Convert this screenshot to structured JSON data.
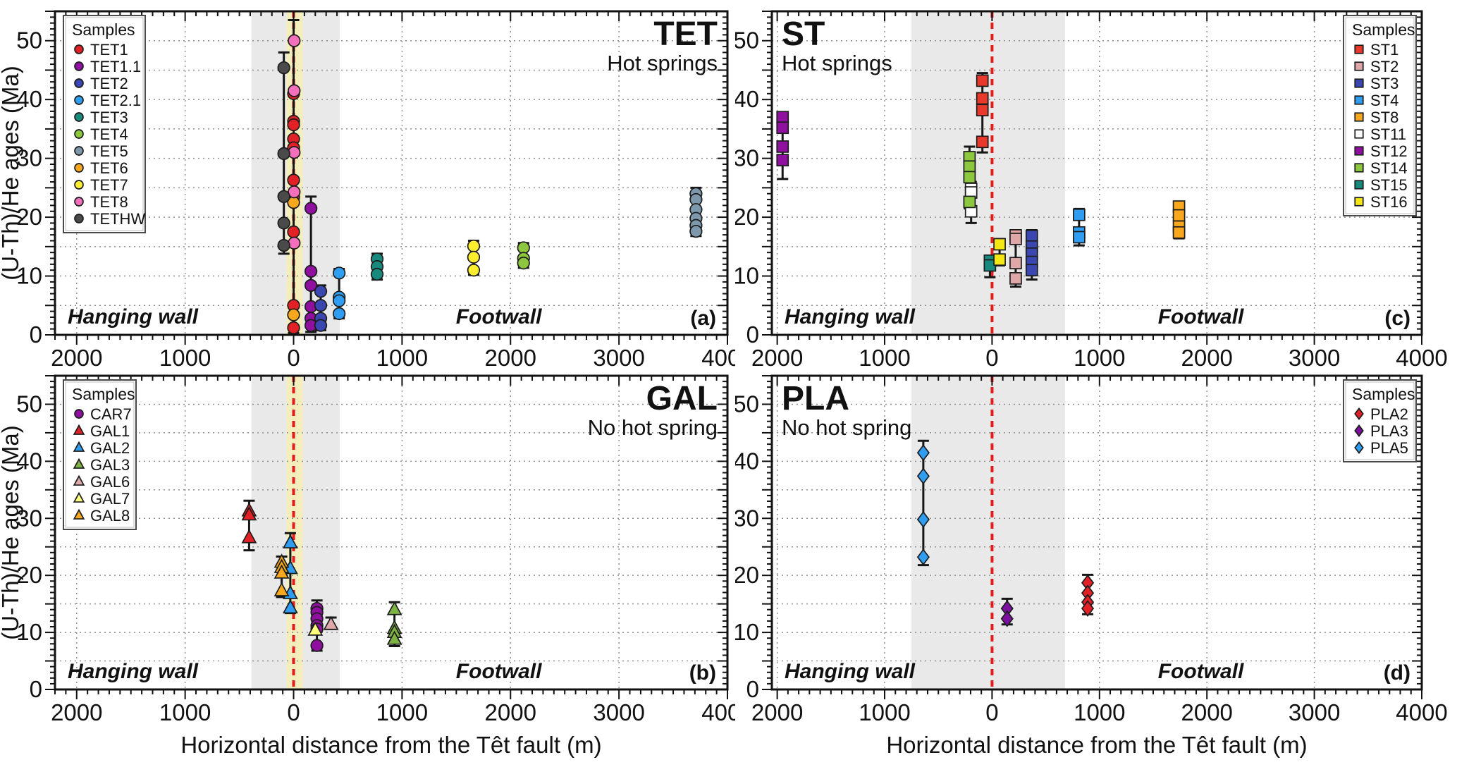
{
  "figure": {
    "xlabel": "Horizontal distance from the Têt fault (m)",
    "ylabel": "(U-Th)/He ages (Ma)",
    "colors": {
      "fault_line": "#e51c1c",
      "grey_band": "#e9e9e9",
      "yellow_band": "#f3eebc",
      "grid": "#909090",
      "frame": "#111111"
    }
  },
  "chart_data": [
    {
      "id": "a",
      "type": "scatter",
      "title": "TET",
      "subtitle": "Hot springs",
      "title_side": "right",
      "corner_label": "(a)",
      "left_label": "Hanging wall",
      "right_label": "Footwall",
      "x_range": [
        -2200,
        4000
      ],
      "y_range": [
        0,
        55
      ],
      "x_tick_step": 1000,
      "x_minor_step": 100,
      "y_grid_step": 5,
      "y_minor_step": 1,
      "y_label_step": 10,
      "bands": {
        "grey": [
          -390,
          425
        ],
        "yellow": [
          -65,
          85
        ]
      },
      "fault_x": 0,
      "legend": {
        "title": "Samples",
        "position": "top-left"
      },
      "series": [
        {
          "name": "TET1",
          "marker": "circle",
          "color": "#e22127",
          "x": 0,
          "ages": [
            41.0,
            36.3,
            35.7,
            33.3,
            31.8,
            26.3,
            23.4,
            17.5,
            5.0,
            1.2
          ],
          "bar": [
            0.3,
            53.5
          ]
        },
        {
          "name": "TET1.1",
          "marker": "circle",
          "color": "#8f109f",
          "x": 160,
          "ages": [
            21.5,
            10.8,
            8.4,
            4.8,
            2.8,
            1.6
          ],
          "bar": [
            0.5,
            23.5
          ]
        },
        {
          "name": "TET2",
          "marker": "circle",
          "color": "#3a47b0",
          "x": 250,
          "ages": [
            7.4,
            5.0,
            2.8,
            1.6
          ],
          "bar": [
            0.8,
            8.4
          ]
        },
        {
          "name": "TET2.1",
          "marker": "circle",
          "color": "#2e9df2",
          "x": 420,
          "ages": [
            10.5,
            6.4,
            5.8,
            3.6
          ],
          "bar": [
            2.8,
            11.2
          ]
        },
        {
          "name": "TET3",
          "marker": "circle",
          "color": "#188a7d",
          "x": 770,
          "ages": [
            12.9,
            11.6,
            10.3
          ],
          "bar": [
            9.4,
            13.8
          ]
        },
        {
          "name": "TET4",
          "marker": "circle",
          "color": "#8dc63f",
          "x": 2120,
          "ages": [
            14.8,
            13.0,
            12.2
          ],
          "bar": [
            11.4,
            15.6
          ]
        },
        {
          "name": "TET5",
          "marker": "circle",
          "color": "#7d97ab",
          "x": 3710,
          "ages": [
            24.0,
            23.0,
            21.3,
            19.8,
            18.6,
            17.6
          ],
          "bar": [
            16.8,
            25.0
          ]
        },
        {
          "name": "TET6",
          "marker": "circle",
          "color": "#f7a81d",
          "x": 0,
          "ages": [
            22.5,
            3.4
          ],
          "bar": null
        },
        {
          "name": "TET7",
          "marker": "circle",
          "color": "#fdee30",
          "x": 1660,
          "ages": [
            15.1,
            13.2,
            11.0
          ],
          "bar": [
            10.2,
            16.0
          ]
        },
        {
          "name": "TET8",
          "marker": "circle",
          "color": "#f570bc",
          "x": 5,
          "ages": [
            50.0,
            41.5,
            31.0,
            24.3,
            15.6
          ],
          "bar": null
        },
        {
          "name": "TETHW",
          "marker": "circle",
          "color": "#4a4a4a",
          "x": -90,
          "ages": [
            45.4,
            30.8,
            23.5,
            19.0,
            15.2
          ],
          "bar": [
            13.8,
            48.0
          ]
        }
      ]
    },
    {
      "id": "b",
      "type": "scatter",
      "title": "GAL",
      "subtitle": "No hot spring",
      "title_side": "right",
      "corner_label": "(b)",
      "left_label": "Hanging wall",
      "right_label": "Footwall",
      "x_range": [
        -2200,
        4000
      ],
      "y_range": [
        0,
        55
      ],
      "x_tick_step": 1000,
      "x_minor_step": 100,
      "y_grid_step": 5,
      "y_minor_step": 1,
      "y_label_step": 10,
      "bands": {
        "grey": [
          -390,
          425
        ],
        "yellow": [
          -65,
          85
        ]
      },
      "fault_x": 0,
      "legend": {
        "title": "Samples",
        "position": "top-left"
      },
      "series": [
        {
          "name": "CAR7",
          "marker": "circle",
          "color": "#8f109f",
          "x": 215,
          "ages": [
            14.2,
            13.5,
            12.4,
            11.2,
            10.6,
            7.7
          ],
          "bar": [
            6.8,
            15.6
          ]
        },
        {
          "name": "GAL1",
          "marker": "triangle",
          "color": "#e22127",
          "x": -410,
          "ages": [
            31.3,
            30.6,
            26.6
          ],
          "bar": [
            24.4,
            33.1
          ]
        },
        {
          "name": "GAL2",
          "marker": "triangle",
          "color": "#2e9df2",
          "x": -30,
          "ages": [
            25.7,
            21.2,
            16.8,
            14.3
          ],
          "bar": [
            13.4,
            27.4
          ]
        },
        {
          "name": "GAL3",
          "marker": "triangle",
          "color": "#7db343",
          "x": 930,
          "ages": [
            14.0,
            10.7,
            10.0,
            8.8
          ],
          "bar": [
            7.6,
            15.3
          ]
        },
        {
          "name": "GAL6",
          "marker": "triangle",
          "color": "#dfa8a8",
          "x": 345,
          "ages": [
            11.4
          ],
          "bar": [
            10.6,
            12.6
          ]
        },
        {
          "name": "GAL7",
          "marker": "triangle",
          "color": "#ffff7e",
          "x": 200,
          "ages": [
            10.4
          ],
          "bar": null
        },
        {
          "name": "GAL8",
          "marker": "triangle",
          "color": "#f7a81d",
          "x": -110,
          "ages": [
            22.3,
            21.4,
            20.4,
            17.3
          ],
          "bar": [
            16.2,
            23.3
          ]
        }
      ]
    },
    {
      "id": "c",
      "type": "scatter",
      "title": "ST",
      "subtitle": "Hot springs",
      "title_side": "left",
      "corner_label": "(c)",
      "left_label": "Hanging wall",
      "right_label": "Footwall",
      "x_range": [
        -2050,
        4000
      ],
      "y_range": [
        0,
        55
      ],
      "x_tick_step": 1000,
      "x_minor_step": 100,
      "y_grid_step": 5,
      "y_minor_step": 1,
      "y_label_step": 10,
      "bands": {
        "grey": [
          -750,
          680
        ],
        "yellow": null
      },
      "fault_x": 0,
      "legend": {
        "title": "Samples",
        "position": "top-right"
      },
      "series": [
        {
          "name": "ST1",
          "marker": "square",
          "color": "#e8392c",
          "x": -90,
          "ages": [
            43.2,
            40.2,
            38.2,
            32.8
          ],
          "bar": [
            31.0,
            44.5
          ]
        },
        {
          "name": "ST2",
          "marker": "square",
          "color": "#dfa8a8",
          "x": 220,
          "ages": [
            16.9,
            16.3,
            12.2,
            9.6
          ],
          "bar": [
            8.2,
            17.8
          ]
        },
        {
          "name": "ST3",
          "marker": "square",
          "color": "#3a47b0",
          "x": 370,
          "ages": [
            16.8,
            15.0,
            13.8,
            12.4,
            11.0
          ],
          "bar": [
            9.4,
            17.8
          ]
        },
        {
          "name": "ST4",
          "marker": "square",
          "color": "#2e9df2",
          "x": 810,
          "ages": [
            20.4,
            17.4,
            16.6
          ],
          "bar": [
            15.2,
            21.4
          ]
        },
        {
          "name": "ST8",
          "marker": "square",
          "color": "#f7a81d",
          "x": 1740,
          "ages": [
            21.8,
            20.3,
            18.4,
            17.4
          ],
          "bar": [
            16.4,
            22.6
          ]
        },
        {
          "name": "ST11",
          "marker": "square",
          "color": "#ffffff",
          "x": -195,
          "ages": [
            24.8,
            24.2,
            21.0
          ],
          "bar": [
            19.0,
            26.0
          ]
        },
        {
          "name": "ST12",
          "marker": "square",
          "color": "#8f109f",
          "x": -1950,
          "ages": [
            37.0,
            35.2,
            32.0,
            29.7
          ],
          "bar": [
            26.5,
            37.8
          ]
        },
        {
          "name": "ST14",
          "marker": "square",
          "color": "#8dc63f",
          "x": -210,
          "ages": [
            30.2,
            28.6,
            26.8,
            22.6
          ],
          "bar": [
            21.5,
            32.0
          ]
        },
        {
          "name": "ST15",
          "marker": "square",
          "color": "#188a7d",
          "x": -20,
          "ages": [
            12.6,
            11.8
          ],
          "bar": [
            9.8,
            13.4
          ]
        },
        {
          "name": "ST16",
          "marker": "square",
          "color": "#f5e616",
          "x": 70,
          "ages": [
            15.4,
            12.8
          ],
          "bar": [
            11.8,
            16.3
          ]
        }
      ]
    },
    {
      "id": "d",
      "type": "scatter",
      "title": "PLA",
      "subtitle": "No hot spring",
      "title_side": "left",
      "corner_label": "(d)",
      "left_label": "Hanging wall",
      "right_label": "Footwall",
      "x_range": [
        -2050,
        4000
      ],
      "y_range": [
        0,
        55
      ],
      "x_tick_step": 1000,
      "x_minor_step": 100,
      "y_grid_step": 5,
      "y_minor_step": 1,
      "y_label_step": 10,
      "bands": {
        "grey": [
          -750,
          680
        ],
        "yellow": null
      },
      "fault_x": 0,
      "legend": {
        "title": "Samples",
        "position": "top-right"
      },
      "series": [
        {
          "name": "PLA2",
          "marker": "diamond",
          "color": "#e22127",
          "x": 890,
          "ages": [
            18.7,
            16.9,
            15.3,
            14.2
          ],
          "bar": [
            13.2,
            20.1
          ]
        },
        {
          "name": "PLA3",
          "marker": "diamond",
          "color": "#7b0f9e",
          "x": 140,
          "ages": [
            14.2,
            12.4
          ],
          "bar": [
            11.4,
            15.9
          ]
        },
        {
          "name": "PLA5",
          "marker": "diamond",
          "color": "#2e9df2",
          "x": -640,
          "ages": [
            41.5,
            37.4,
            29.8,
            23.2
          ],
          "bar": [
            21.8,
            43.6
          ]
        }
      ]
    }
  ]
}
